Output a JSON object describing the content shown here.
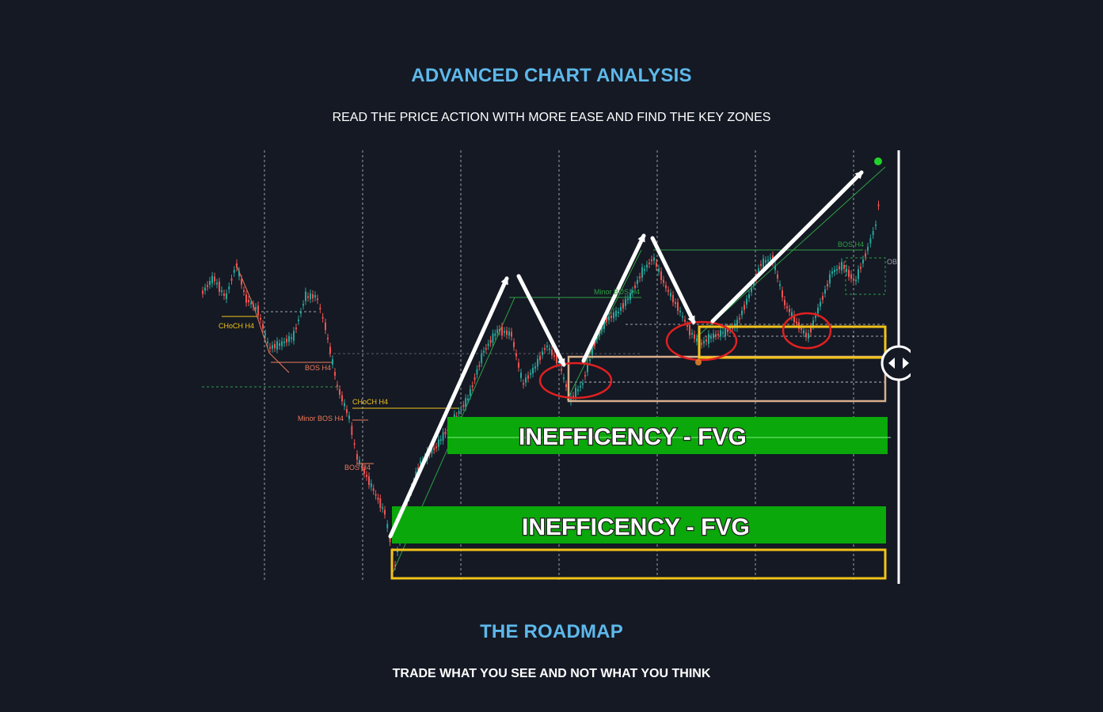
{
  "section1": {
    "title": "ADVANCED CHART ANALYSIS",
    "subtitle": "READ THE PRICE ACTION WITH MORE EASE AND FIND THE KEY ZONES"
  },
  "chart": {
    "fvg_label_upper": "INEFFICENCY - FVG",
    "fvg_label_lower": "INEFFICENCY - FVG",
    "labels": {
      "choch_h4_left": "CHoCH H4",
      "bos_h4_1": "BOS H4",
      "choch_h4_mid": "CHoCH H4",
      "minor_bos_h4_left": "Minor BOS H4",
      "bos_h4_2": "BOS H4",
      "minor_bos_h4_mid": "Minor BOS H4",
      "bos_h4_right": "BOS H4",
      "ob": "OB"
    },
    "colors": {
      "bull": "#26a69a",
      "bear": "#ef5350",
      "fvg": "#0aa80a",
      "zone": "#f2c21a",
      "circle": "#e02020"
    }
  },
  "section2": {
    "title": "THE ROADMAP",
    "subtitle": "TRADE WHAT YOU SEE AND NOT WHAT YOU THINK"
  }
}
